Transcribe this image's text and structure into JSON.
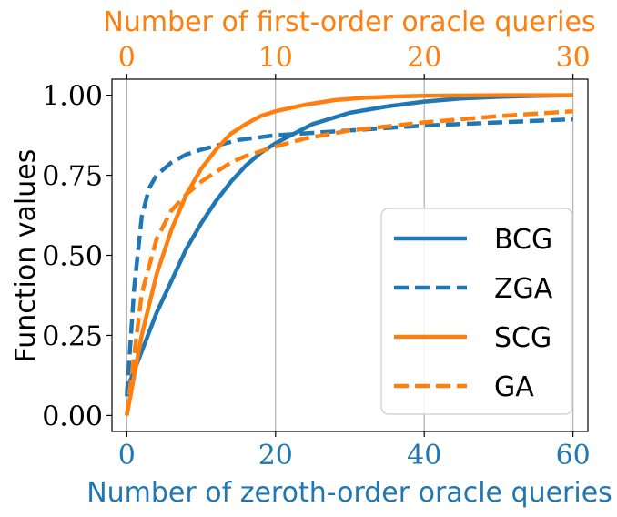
{
  "chart_data": {
    "type": "line",
    "title": "",
    "xlabel": "Number of zeroth-order oracle queries",
    "xlabel_color": "#1f77b4",
    "x2label": "Number of first-order oracle queries",
    "x2label_color": "#ff7f0e",
    "ylabel": "Function values",
    "xlim": [
      -2,
      62
    ],
    "x2lim": [
      -1,
      31
    ],
    "ylim": [
      -0.05,
      1.05
    ],
    "x_ticks": [
      0,
      20,
      40,
      60
    ],
    "x_tick_labels": [
      "0",
      "20",
      "40",
      "60"
    ],
    "x2_ticks": [
      0,
      10,
      20,
      30
    ],
    "x2_tick_labels": [
      "0",
      "10",
      "20",
      "30"
    ],
    "y_ticks": [
      0.0,
      0.25,
      0.5,
      0.75,
      1.0
    ],
    "y_tick_labels": [
      "0.00",
      "0.25",
      "0.50",
      "0.75",
      "1.00"
    ],
    "grid": "vertical",
    "legend_position": "lower-right",
    "series": [
      {
        "name": "BCG",
        "axis": "bottom",
        "color": "#1f77b4",
        "dash": "solid",
        "x": [
          0,
          2,
          4,
          6,
          8,
          10,
          12,
          14,
          16,
          18,
          20,
          25,
          30,
          35,
          40,
          45,
          50,
          55,
          60
        ],
        "y": [
          0.08,
          0.2,
          0.32,
          0.42,
          0.52,
          0.6,
          0.67,
          0.73,
          0.78,
          0.82,
          0.85,
          0.91,
          0.945,
          0.965,
          0.98,
          0.99,
          0.995,
          0.998,
          1.0
        ]
      },
      {
        "name": "ZGA",
        "axis": "bottom",
        "color": "#1f77b4",
        "dash": "dashed",
        "x": [
          0,
          1,
          2,
          3,
          4,
          6,
          8,
          10,
          15,
          20,
          30,
          40,
          50,
          60
        ],
        "y": [
          0.06,
          0.4,
          0.62,
          0.71,
          0.75,
          0.79,
          0.815,
          0.83,
          0.86,
          0.875,
          0.89,
          0.905,
          0.915,
          0.925
        ]
      },
      {
        "name": "SCG",
        "axis": "top",
        "color": "#ff7f0e",
        "dash": "solid",
        "x": [
          0,
          1,
          2,
          3,
          4,
          5,
          6,
          7,
          8,
          9,
          10,
          12,
          14,
          16,
          18,
          20,
          25,
          30
        ],
        "y": [
          0.0,
          0.25,
          0.44,
          0.58,
          0.69,
          0.77,
          0.83,
          0.88,
          0.91,
          0.935,
          0.95,
          0.97,
          0.985,
          0.992,
          0.996,
          0.998,
          1.0,
          1.0
        ]
      },
      {
        "name": "GA",
        "axis": "top",
        "color": "#ff7f0e",
        "dash": "dashed",
        "x": [
          0,
          1,
          2,
          3,
          4,
          5,
          6,
          7,
          8,
          10,
          12,
          15,
          20,
          25,
          30
        ],
        "y": [
          0.0,
          0.38,
          0.55,
          0.64,
          0.69,
          0.73,
          0.76,
          0.79,
          0.81,
          0.84,
          0.865,
          0.89,
          0.915,
          0.935,
          0.95
        ]
      }
    ]
  }
}
